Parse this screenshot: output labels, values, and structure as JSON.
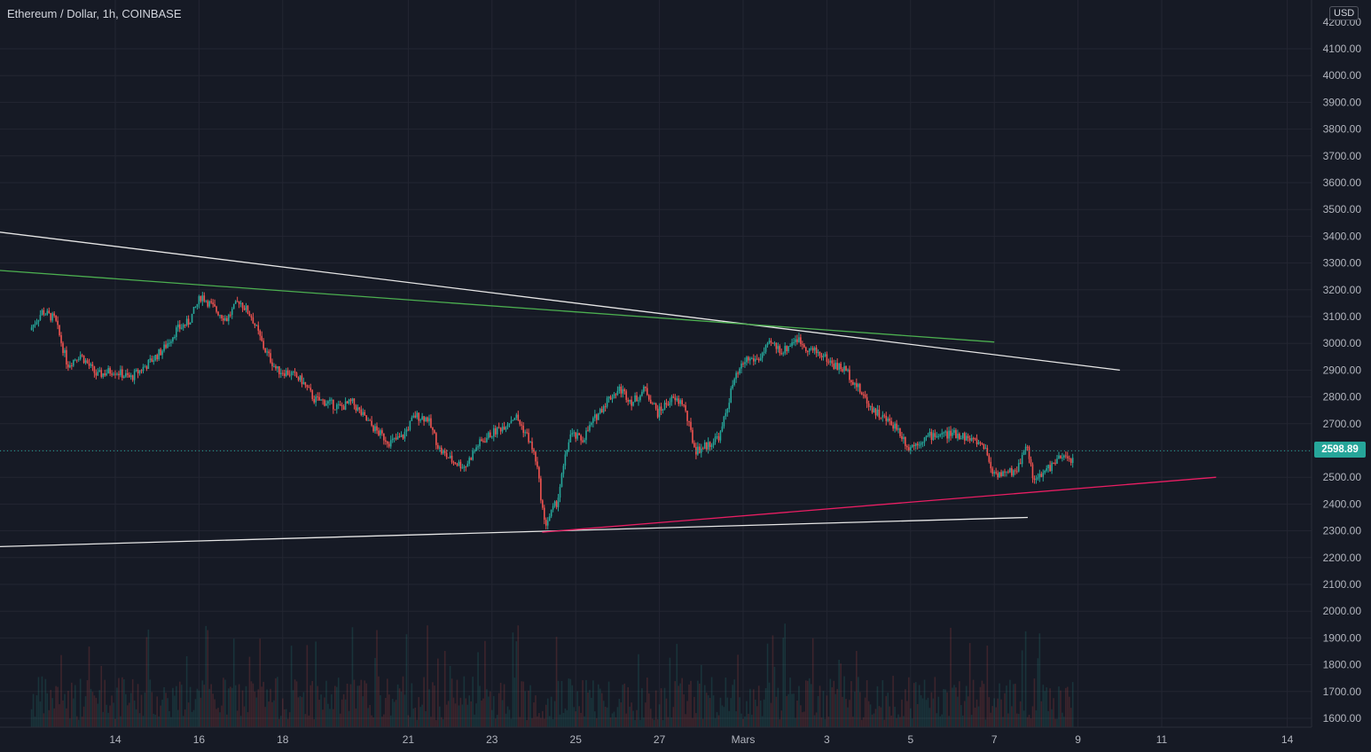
{
  "header": {
    "title": "Ethereum / Dollar, 1h, COINBASE",
    "currency": "USD"
  },
  "colors": {
    "background": "#161a25",
    "grid": "#232632",
    "axis_text": "#b2b5be",
    "up": "#26a69a",
    "down": "#ef5350",
    "white_lines": "#e6e6e6",
    "green_line": "#4caf50",
    "pink_line": "#e91e63"
  },
  "chart_data": {
    "type": "candlestick",
    "symbol": "Ethereum / Dollar",
    "interval": "1h",
    "exchange": "COINBASE",
    "current_price": "2598.89",
    "y_axis": {
      "ticks": [
        1600,
        1700,
        1800,
        1900,
        2000,
        2100,
        2200,
        2300,
        2400,
        2500,
        2600,
        2700,
        2800,
        2900,
        3000,
        3100,
        3200,
        3300,
        3400,
        3500,
        3600,
        3700,
        3800,
        3900,
        4000,
        4100
      ],
      "tick_labels": [
        "1600.00",
        "1700.00",
        "1800.00",
        "1900.00",
        "2000.00",
        "2100.00",
        "2200.00",
        "2300.00",
        "2400.00",
        "2500.00",
        "2600.00",
        "2700.00",
        "2800.00",
        "2900.00",
        "3000.00",
        "3100.00",
        "3200.00",
        "3300.00",
        "3400.00",
        "3500.00",
        "3600.00",
        "3700.00",
        "3800.00",
        "3900.00",
        "4000.00",
        "4100.00"
      ],
      "top_partial_label": "4200.00",
      "range": [
        1580,
        4210
      ]
    },
    "x_axis": {
      "tick_labels": [
        "14",
        "16",
        "18",
        "21",
        "23",
        "25",
        "27",
        "Mars",
        "3",
        "5",
        "7",
        "9",
        "11",
        "14"
      ],
      "tick_days": [
        14,
        16,
        18,
        21,
        23,
        25,
        27,
        29,
        31,
        33,
        35,
        37,
        39,
        42
      ],
      "note": "days counted from February 1; Mars = March 1"
    },
    "price_path": [
      [
        12.0,
        3050
      ],
      [
        12.3,
        3120
      ],
      [
        12.6,
        3090
      ],
      [
        12.9,
        2920
      ],
      [
        13.2,
        2960
      ],
      [
        13.6,
        2880
      ],
      [
        14.0,
        2900
      ],
      [
        14.4,
        2870
      ],
      [
        14.8,
        2920
      ],
      [
        15.2,
        2980
      ],
      [
        15.5,
        3050
      ],
      [
        15.8,
        3080
      ],
      [
        16.1,
        3180
      ],
      [
        16.4,
        3130
      ],
      [
        16.7,
        3090
      ],
      [
        17.0,
        3160
      ],
      [
        17.3,
        3100
      ],
      [
        17.6,
        2980
      ],
      [
        17.9,
        2900
      ],
      [
        18.2,
        2890
      ],
      [
        18.5,
        2860
      ],
      [
        18.8,
        2790
      ],
      [
        19.1,
        2780
      ],
      [
        19.4,
        2760
      ],
      [
        19.7,
        2780
      ],
      [
        20.0,
        2720
      ],
      [
        20.3,
        2670
      ],
      [
        20.6,
        2630
      ],
      [
        20.9,
        2650
      ],
      [
        21.2,
        2730
      ],
      [
        21.5,
        2720
      ],
      [
        21.8,
        2600
      ],
      [
        22.1,
        2560
      ],
      [
        22.4,
        2540
      ],
      [
        22.7,
        2620
      ],
      [
        23.0,
        2660
      ],
      [
        23.3,
        2690
      ],
      [
        23.6,
        2730
      ],
      [
        23.9,
        2650
      ],
      [
        24.1,
        2560
      ],
      [
        24.3,
        2320
      ],
      [
        24.6,
        2410
      ],
      [
        24.9,
        2660
      ],
      [
        25.2,
        2640
      ],
      [
        25.5,
        2720
      ],
      [
        25.8,
        2790
      ],
      [
        26.1,
        2830
      ],
      [
        26.4,
        2780
      ],
      [
        26.7,
        2830
      ],
      [
        27.0,
        2740
      ],
      [
        27.3,
        2790
      ],
      [
        27.6,
        2780
      ],
      [
        27.9,
        2600
      ],
      [
        28.2,
        2620
      ],
      [
        28.5,
        2660
      ],
      [
        28.8,
        2850
      ],
      [
        29.1,
        2940
      ],
      [
        29.4,
        2940
      ],
      [
        29.7,
        3000
      ],
      [
        30.0,
        2970
      ],
      [
        30.3,
        3020
      ],
      [
        30.6,
        2980
      ],
      [
        30.9,
        2960
      ],
      [
        31.2,
        2920
      ],
      [
        31.5,
        2900
      ],
      [
        31.8,
        2830
      ],
      [
        32.1,
        2760
      ],
      [
        32.4,
        2720
      ],
      [
        32.7,
        2690
      ],
      [
        33.0,
        2610
      ],
      [
        33.3,
        2640
      ],
      [
        33.6,
        2660
      ],
      [
        33.9,
        2660
      ],
      [
        34.2,
        2660
      ],
      [
        34.5,
        2640
      ],
      [
        34.8,
        2620
      ],
      [
        35.0,
        2520
      ],
      [
        35.3,
        2510
      ],
      [
        35.6,
        2530
      ],
      [
        35.8,
        2630
      ],
      [
        36.0,
        2480
      ],
      [
        36.3,
        2530
      ],
      [
        36.6,
        2570
      ],
      [
        36.9,
        2570
      ]
    ],
    "trendlines": [
      {
        "name": "upper-white-resistance",
        "color": "#e6e6e6",
        "points": [
          [
            11.0,
            3420
          ],
          [
            38.0,
            2900
          ]
        ]
      },
      {
        "name": "green-resistance",
        "color": "#4caf50",
        "points": [
          [
            11.0,
            3275
          ],
          [
            35.0,
            3005
          ]
        ]
      },
      {
        "name": "lower-white-support",
        "color": "#e6e6e6",
        "points": [
          [
            11.0,
            2240
          ],
          [
            35.8,
            2350
          ]
        ]
      },
      {
        "name": "pink-support",
        "color": "#e91e63",
        "points": [
          [
            24.2,
            2295
          ],
          [
            40.3,
            2500
          ]
        ]
      }
    ],
    "current_price_line": 2598.89,
    "grid": true,
    "volume_histogram": true
  }
}
